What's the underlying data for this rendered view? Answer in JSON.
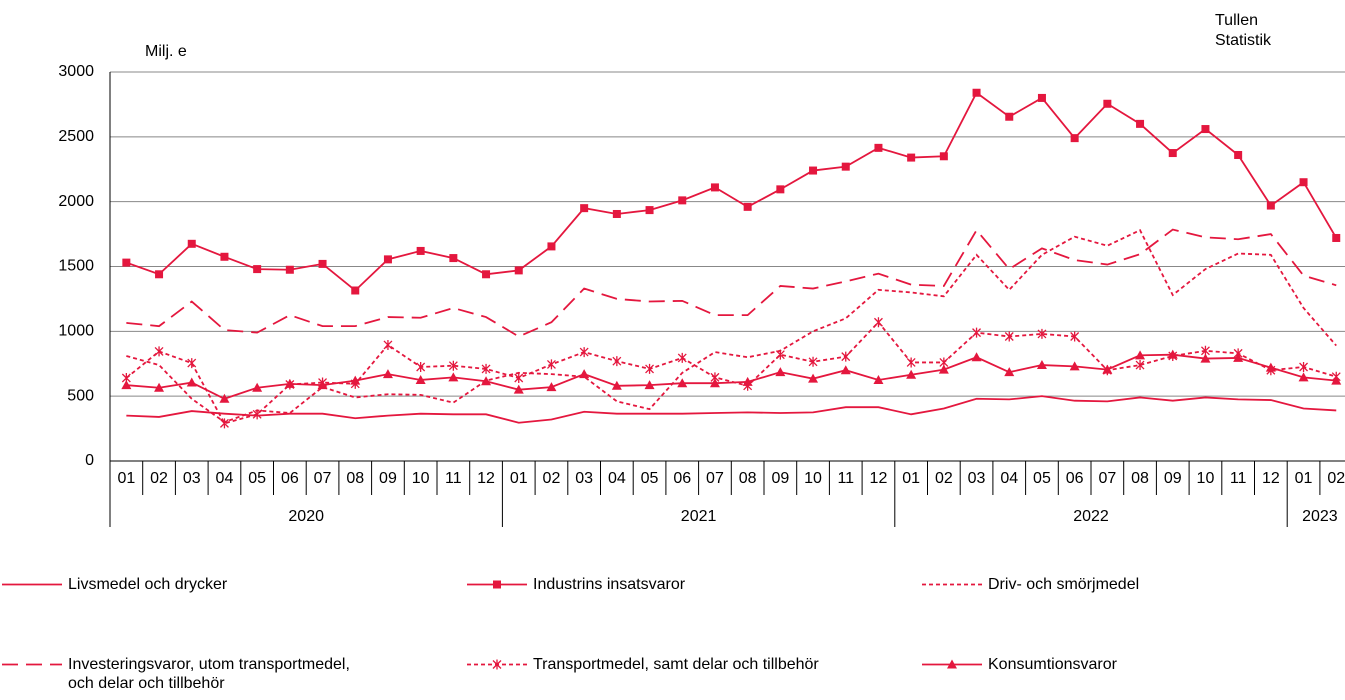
{
  "chart_data": {
    "type": "line",
    "y_label": "Milj. e",
    "source": [
      "Tullen",
      "Statistik"
    ],
    "categories": [
      "01",
      "02",
      "03",
      "04",
      "05",
      "06",
      "07",
      "08",
      "09",
      "10",
      "11",
      "12",
      "01",
      "02",
      "03",
      "04",
      "05",
      "06",
      "07",
      "08",
      "09",
      "10",
      "11",
      "12",
      "01",
      "02",
      "03",
      "04",
      "05",
      "06",
      "07",
      "08",
      "09",
      "10",
      "11",
      "12",
      "01",
      "02"
    ],
    "year_groups": [
      {
        "label": "2020",
        "months": 12
      },
      {
        "label": "2021",
        "months": 12
      },
      {
        "label": "2022",
        "months": 12
      },
      {
        "label": "2023",
        "months": 2
      }
    ],
    "ylim": [
      0,
      3000
    ],
    "yticks": [
      0,
      500,
      1000,
      1500,
      2000,
      2500,
      3000
    ],
    "grid": true,
    "series": [
      {
        "name": "Livsmedel och drycker",
        "color": "#e4173e",
        "dash": "solid",
        "marker": "none",
        "values": [
          350,
          340,
          385,
          365,
          350,
          365,
          365,
          330,
          350,
          365,
          360,
          360,
          295,
          320,
          380,
          365,
          365,
          365,
          370,
          375,
          370,
          375,
          415,
          415,
          360,
          405,
          480,
          475,
          500,
          465,
          460,
          490,
          465,
          490,
          475,
          470,
          405,
          390
        ]
      },
      {
        "name": "Industrins insatsvaror",
        "color": "#e4173e",
        "dash": "solid",
        "marker": "square",
        "values": [
          1530,
          1440,
          1675,
          1575,
          1480,
          1475,
          1520,
          1315,
          1555,
          1620,
          1565,
          1440,
          1470,
          1655,
          1950,
          1905,
          1935,
          2010,
          2110,
          1960,
          2095,
          2240,
          2270,
          2415,
          2340,
          2350,
          2840,
          2655,
          2800,
          2490,
          2755,
          2600,
          2375,
          2560,
          2360,
          1970,
          2150,
          1720
        ]
      },
      {
        "name": "Driv- och smörjmedel",
        "color": "#e4173e",
        "dash": "short",
        "marker": "none",
        "values": [
          810,
          740,
          480,
          300,
          390,
          370,
          570,
          490,
          515,
          510,
          450,
          620,
          680,
          670,
          650,
          460,
          400,
          680,
          840,
          800,
          850,
          1000,
          1100,
          1320,
          1300,
          1270,
          1590,
          1320,
          1590,
          1730,
          1660,
          1780,
          1280,
          1480,
          1600,
          1590,
          1180,
          890
        ]
      },
      {
        "name": "Investeringsvaror, utom transportmedel, och delar och tillbehör",
        "color": "#e4173e",
        "dash": "long",
        "marker": "none",
        "values": [
          1065,
          1040,
          1230,
          1010,
          990,
          1125,
          1040,
          1040,
          1110,
          1105,
          1180,
          1110,
          960,
          1070,
          1330,
          1250,
          1230,
          1235,
          1125,
          1125,
          1350,
          1330,
          1385,
          1445,
          1360,
          1350,
          1780,
          1480,
          1640,
          1550,
          1515,
          1595,
          1785,
          1725,
          1710,
          1750,
          1430,
          1355
        ]
      },
      {
        "name": "Transportmedel, samt delar och tillbehör",
        "color": "#e4173e",
        "dash": "short",
        "marker": "asterisk",
        "values": [
          640,
          845,
          755,
          290,
          360,
          590,
          605,
          595,
          895,
          725,
          735,
          710,
          640,
          745,
          840,
          770,
          710,
          795,
          645,
          580,
          820,
          765,
          805,
          1070,
          760,
          760,
          990,
          960,
          980,
          960,
          700,
          740,
          810,
          850,
          830,
          700,
          725,
          650
        ]
      },
      {
        "name": "Konsumtionsvaror",
        "color": "#e4173e",
        "dash": "solid",
        "marker": "triangle",
        "values": [
          585,
          565,
          605,
          480,
          565,
          595,
          585,
          620,
          670,
          625,
          645,
          615,
          550,
          570,
          670,
          580,
          585,
          600,
          600,
          610,
          685,
          635,
          700,
          625,
          665,
          705,
          800,
          685,
          740,
          730,
          705,
          815,
          820,
          790,
          795,
          720,
          645,
          620
        ]
      }
    ]
  }
}
